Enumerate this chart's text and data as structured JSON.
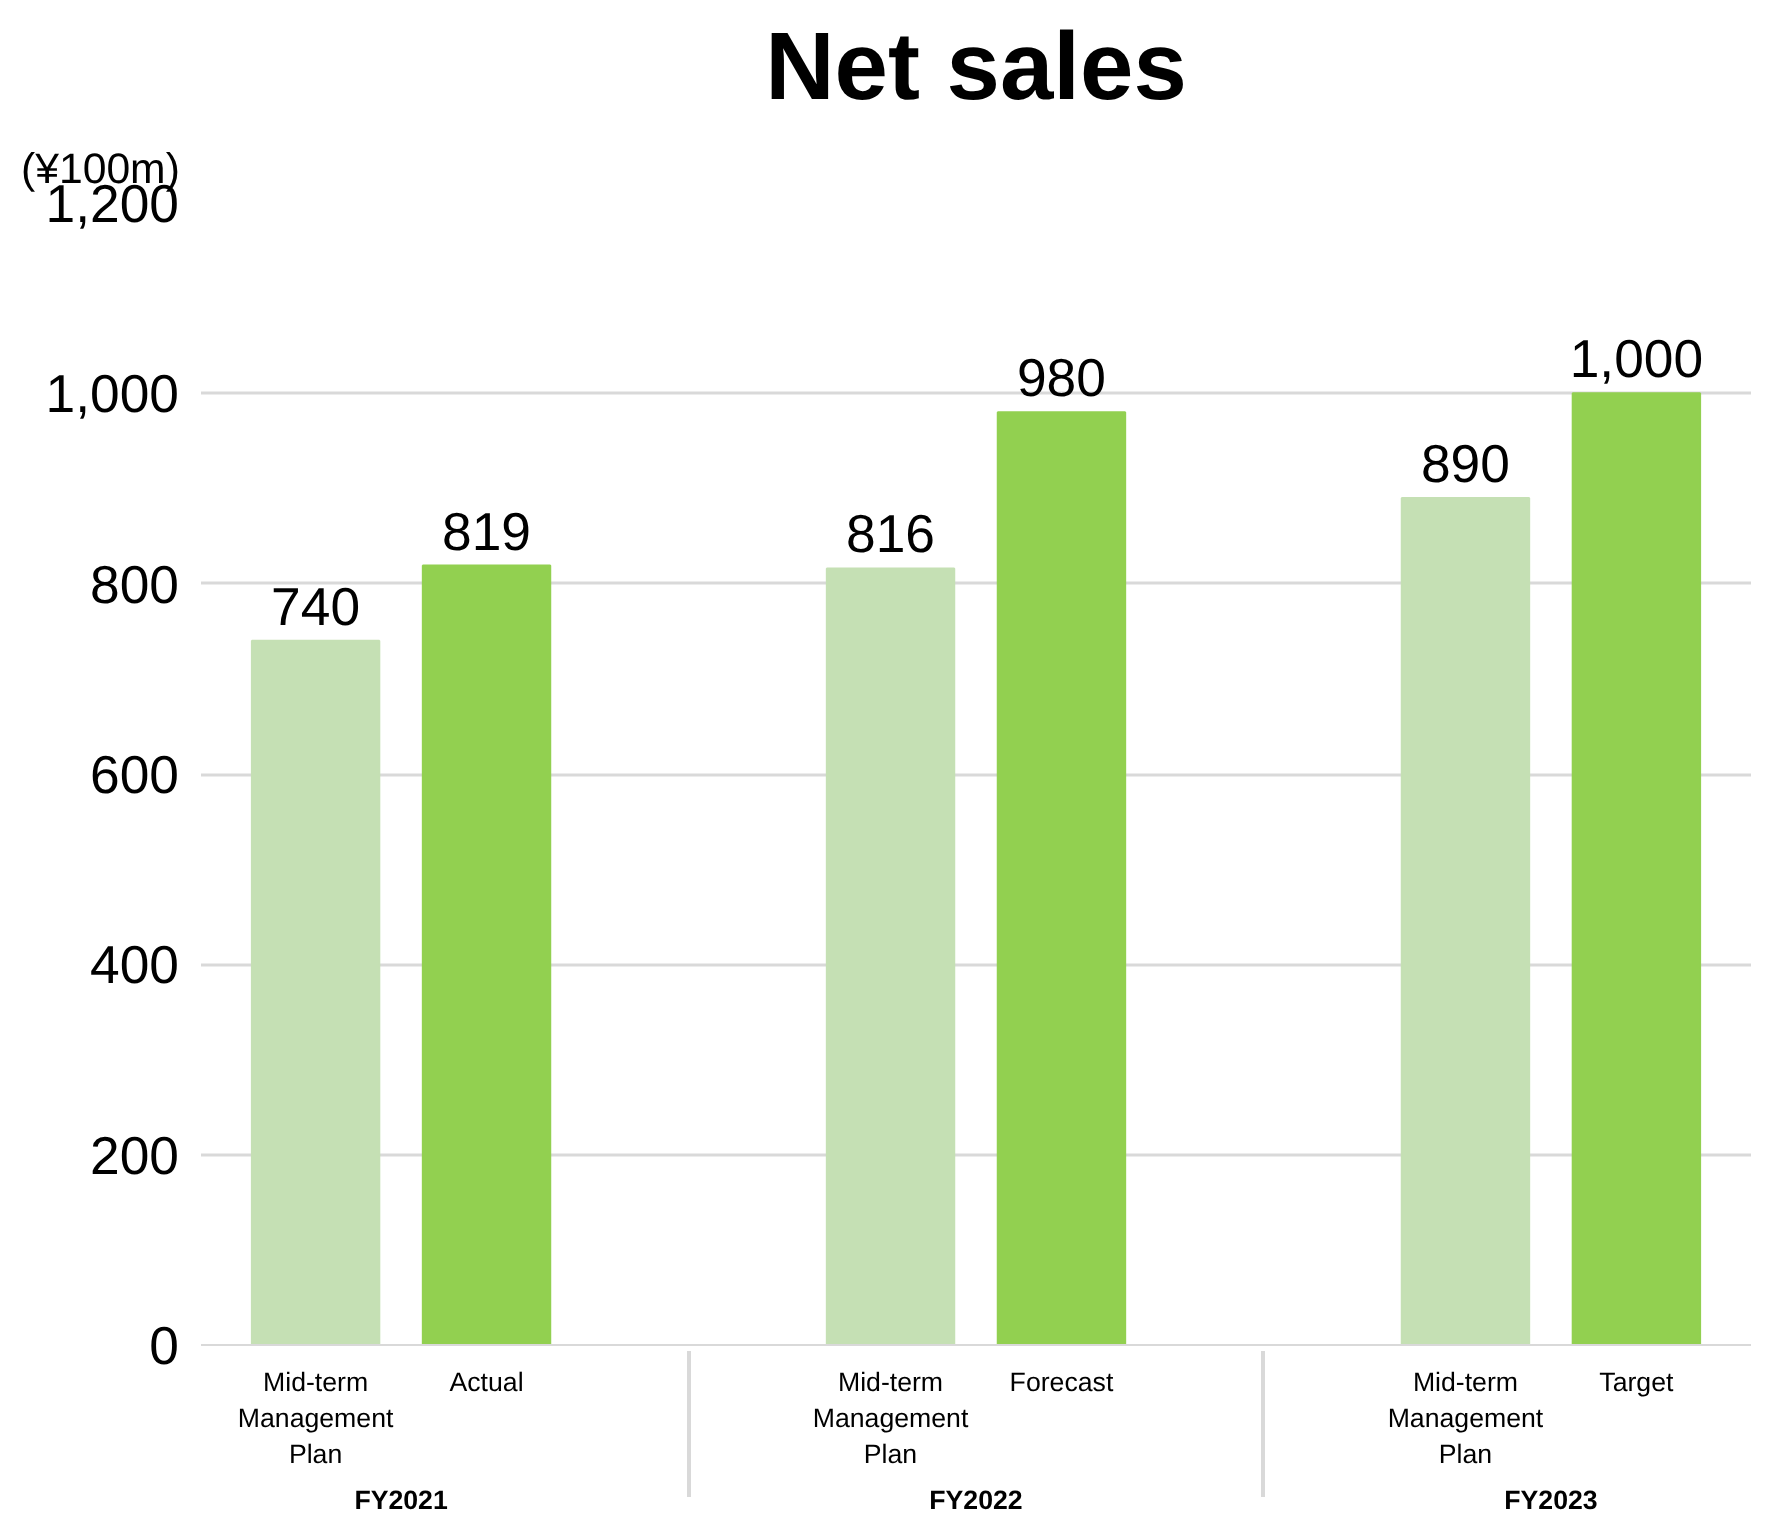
{
  "chart_data": {
    "type": "bar",
    "title": "Net sales",
    "ylabel": "(¥100m)",
    "categories": [
      "Mid-term Management Plan",
      "Actual",
      "Mid-term Management Plan",
      "Forecast",
      "Mid-term Management Plan",
      "Target"
    ],
    "annotations": [
      "FY2021",
      "FY2022",
      "FY2023"
    ],
    "values": [
      740,
      819,
      816,
      980,
      890,
      1000
    ],
    "colors": [
      "#c5e0b4",
      "#92d050",
      "#c5e0b4",
      "#92d050",
      "#c5e0b4",
      "#92d050"
    ],
    "value_labels": [
      "740",
      "819",
      "816",
      "980",
      "890",
      "1,000"
    ],
    "ylim": [
      0,
      1200
    ],
    "yticks": [
      0,
      200,
      400,
      600,
      800,
      {
        "value": 1000,
        "label": "1,000"
      },
      {
        "value": 1200,
        "label": "1,200"
      }
    ],
    "grid": "y"
  }
}
